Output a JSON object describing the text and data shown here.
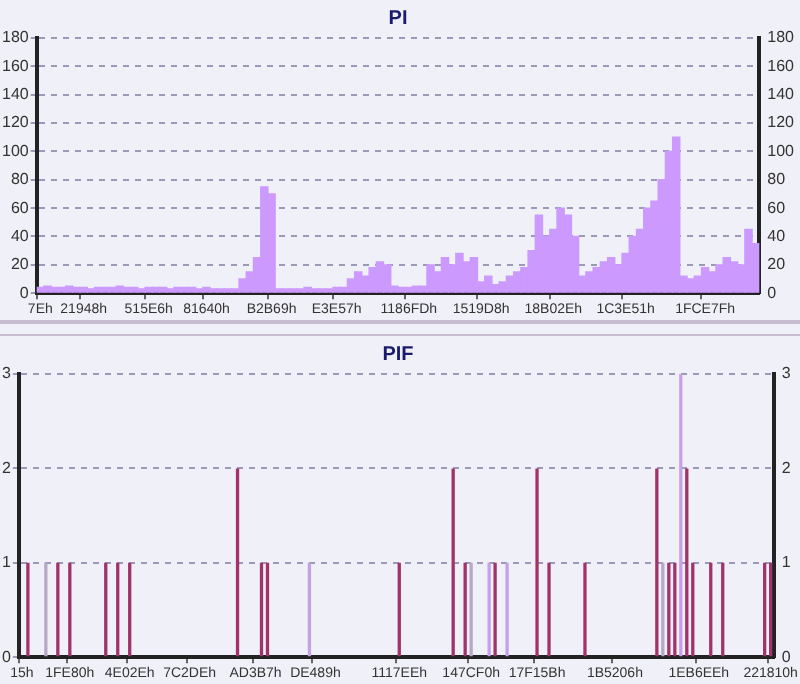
{
  "chart_data": [
    {
      "type": "bar",
      "title": "PI",
      "categories": [
        "7Eh",
        null,
        null,
        null,
        null,
        null,
        "21948h",
        null,
        null,
        null,
        null,
        null,
        null,
        null,
        null,
        "515E6h",
        null,
        null,
        null,
        null,
        null,
        null,
        null,
        "81640h",
        null,
        null,
        null,
        null,
        null,
        null,
        null,
        null,
        "B2B69h",
        null,
        null,
        null,
        null,
        null,
        null,
        null,
        null,
        "E3E57h",
        null,
        null,
        null,
        null,
        null,
        null,
        null,
        null,
        null,
        "1186FDh",
        null,
        null,
        null,
        null,
        null,
        null,
        null,
        null,
        null,
        "1519D8h",
        null,
        null,
        null,
        null,
        null,
        null,
        null,
        null,
        null,
        "18B02Eh",
        null,
        null,
        null,
        null,
        null,
        null,
        null,
        null,
        null,
        "1C3E51h",
        null,
        null,
        null,
        null,
        null,
        null,
        null,
        null,
        null,
        null,
        "1FCE7Fh",
        null,
        null,
        null,
        null,
        null,
        null,
        null
      ],
      "values": [
        4,
        5,
        4,
        4,
        5,
        4,
        4,
        3,
        4,
        4,
        4,
        5,
        4,
        4,
        3,
        4,
        4,
        4,
        3,
        4,
        4,
        4,
        3,
        4,
        3,
        3,
        3,
        3,
        10,
        15,
        25,
        75,
        70,
        3,
        3,
        3,
        3,
        4,
        3,
        3,
        3,
        4,
        4,
        10,
        15,
        12,
        18,
        22,
        20,
        5,
        4,
        4,
        5,
        5,
        20,
        15,
        25,
        20,
        28,
        22,
        25,
        8,
        12,
        6,
        8,
        12,
        15,
        18,
        30,
        55,
        40,
        45,
        60,
        55,
        40,
        12,
        15,
        18,
        22,
        25,
        20,
        28,
        40,
        45,
        60,
        65,
        80,
        100,
        110,
        12,
        10,
        12,
        18,
        15,
        20,
        25,
        22,
        20,
        45,
        35
      ],
      "color": "#cc99ff",
      "ylim": [
        0,
        180
      ],
      "yticks": [
        0,
        20,
        40,
        60,
        80,
        100,
        120,
        140,
        160,
        180
      ],
      "y2lim": [
        0,
        180
      ],
      "y2ticks": [
        0,
        20,
        40,
        60,
        80,
        100,
        120,
        140,
        160,
        180
      ],
      "grid": "y"
    },
    {
      "type": "bar",
      "title": "PIF",
      "categories": [
        "15h",
        null,
        null,
        null,
        null,
        null,
        null,
        null,
        "1FE80h",
        null,
        null,
        null,
        null,
        null,
        null,
        null,
        null,
        null,
        "4E02Eh",
        null,
        null,
        null,
        null,
        null,
        null,
        null,
        null,
        null,
        "7C2DEh",
        null,
        null,
        null,
        null,
        null,
        null,
        null,
        null,
        null,
        null,
        "AD3B7h",
        null,
        null,
        null,
        null,
        null,
        null,
        null,
        null,
        null,
        "DE489h",
        null,
        null,
        null,
        null,
        null,
        null,
        null,
        null,
        null,
        null,
        null,
        null,
        null,
        "1117EEh",
        null,
        null,
        null,
        null,
        null,
        null,
        null,
        null,
        null,
        null,
        null,
        "147CF0h",
        null,
        null,
        null,
        null,
        null,
        null,
        null,
        null,
        null,
        null,
        "17F15Bh",
        null,
        null,
        null,
        null,
        null,
        null,
        null,
        null,
        null,
        null,
        null,
        null,
        "1B5206h",
        null,
        null,
        null,
        null,
        null,
        null,
        null,
        null,
        null,
        null,
        null,
        null,
        null,
        "1EB6EEh",
        null,
        null,
        null,
        null,
        null,
        null,
        null,
        null,
        null,
        null,
        null,
        "221810h"
      ],
      "values": [
        0,
        1,
        0,
        0,
        1,
        0,
        1,
        0,
        1,
        0,
        0,
        0,
        0,
        0,
        1,
        0,
        1,
        0,
        1,
        0,
        0,
        0,
        0,
        0,
        0,
        0,
        0,
        0,
        0,
        0,
        0,
        0,
        0,
        0,
        0,
        0,
        2,
        0,
        0,
        0,
        1,
        1,
        0,
        0,
        0,
        0,
        0,
        0,
        1,
        0,
        0,
        0,
        0,
        0,
        0,
        0,
        0,
        0,
        0,
        0,
        0,
        0,
        0,
        1,
        0,
        0,
        0,
        0,
        0,
        0,
        0,
        0,
        2,
        0,
        1,
        1,
        0,
        0,
        1,
        1,
        0,
        1,
        0,
        0,
        0,
        0,
        2,
        0,
        1,
        0,
        0,
        0,
        0,
        0,
        1,
        0,
        0,
        0,
        0,
        0,
        0,
        0,
        0,
        0,
        0,
        0,
        2,
        1,
        1,
        1,
        3,
        2,
        1,
        0,
        0,
        1,
        0,
        1,
        0,
        0,
        0,
        0,
        0,
        0,
        1,
        1
      ],
      "colors": [
        "#a0336a",
        "#a0336a",
        "#a0336a",
        "#a0336a",
        "#b8a8c8",
        "#a0336a",
        "#a0336a",
        "#a0336a",
        "#a0336a",
        "#a0336a",
        "#a0336a",
        "#a0336a",
        "#a0336a",
        "#a0336a",
        "#a0336a",
        "#a0336a",
        "#a0336a",
        "#a0336a",
        "#a0336a",
        "#a0336a",
        "#a0336a",
        "#a0336a",
        "#a0336a",
        "#a0336a",
        "#a0336a",
        "#a0336a",
        "#a0336a",
        "#a0336a",
        "#a0336a",
        "#a0336a",
        "#a0336a",
        "#a0336a",
        "#a0336a",
        "#a0336a",
        "#a0336a",
        "#a0336a",
        "#a0336a",
        "#a0336a",
        "#a0336a",
        "#a0336a",
        "#a0336a",
        "#a0336a",
        "#a0336a",
        "#a0336a",
        "#a0336a",
        "#a0336a",
        "#a0336a",
        "#a0336a",
        "#c8a0e8",
        "#a0336a",
        "#a0336a",
        "#a0336a",
        "#a0336a",
        "#a0336a",
        "#a0336a",
        "#a0336a",
        "#a0336a",
        "#a0336a",
        "#a0336a",
        "#a0336a",
        "#a0336a",
        "#a0336a",
        "#a0336a",
        "#a0336a",
        "#a0336a",
        "#a0336a",
        "#a0336a",
        "#a0336a",
        "#a0336a",
        "#a0336a",
        "#a0336a",
        "#a0336a",
        "#a0336a",
        "#a0336a",
        "#a0336a",
        "#b8a8c8",
        "#a0336a",
        "#a0336a",
        "#c8a0e8",
        "#a0336a",
        "#a0336a",
        "#c8a0e8",
        "#a0336a",
        "#a0336a",
        "#a0336a",
        "#a0336a",
        "#a0336a",
        "#a0336a",
        "#a0336a",
        "#a0336a",
        "#a0336a",
        "#a0336a",
        "#a0336a",
        "#a0336a",
        "#a0336a",
        "#a0336a",
        "#a0336a",
        "#a0336a",
        "#a0336a",
        "#a0336a",
        "#a0336a",
        "#a0336a",
        "#a0336a",
        "#a0336a",
        "#a0336a",
        "#a0336a",
        "#a0336a",
        "#b8a8c8",
        "#a0336a",
        "#a0336a",
        "#c8a0e8",
        "#a0336a",
        "#a0336a",
        "#a0336a",
        "#a0336a",
        "#a0336a",
        "#a0336a",
        "#a0336a",
        "#a0336a",
        "#a0336a",
        "#a0336a",
        "#a0336a",
        "#a0336a",
        "#a0336a",
        "#a0336a",
        "#a0336a"
      ],
      "ylim": [
        0,
        3
      ],
      "yticks": [
        0,
        1,
        2,
        3
      ],
      "y2lim": [
        0,
        3
      ],
      "y2ticks": [
        0,
        1,
        2,
        3
      ],
      "grid": "y"
    }
  ]
}
